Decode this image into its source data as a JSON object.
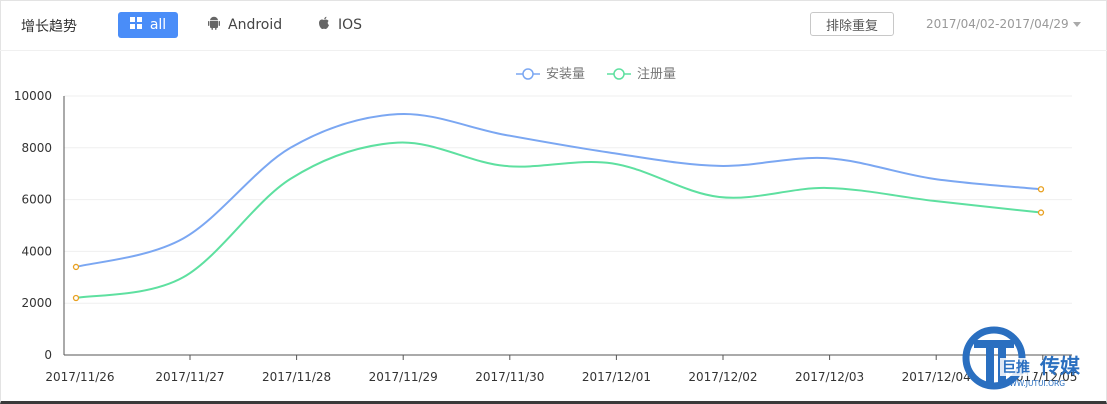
{
  "header": {
    "title": "增长趋势",
    "tabs": [
      {
        "label": "all",
        "icon": "grid-icon",
        "active": true
      },
      {
        "label": "Android",
        "icon": "android-icon",
        "active": false
      },
      {
        "label": "IOS",
        "icon": "apple-icon",
        "active": false
      }
    ],
    "dedup_button": "排除重复",
    "date_range": "2017/04/02-2017/04/29"
  },
  "colors": {
    "accent": "#4a8df8",
    "series_install": "#7ba7f2",
    "series_register": "#5ee0a0",
    "endpoint": "#e8a020"
  },
  "chart_data": {
    "type": "line",
    "categories": [
      "2017/11/26",
      "2017/11/27",
      "2017/11/28",
      "2017/11/29",
      "2017/11/30",
      "2017/12/01",
      "2017/12/02",
      "2017/12/03",
      "2017/12/04",
      "2017/12/05"
    ],
    "series": [
      {
        "name": "安装量",
        "values": [
          3400,
          4500,
          8000,
          9300,
          8500,
          7800,
          7300,
          7600,
          6800,
          6400
        ]
      },
      {
        "name": "注册量",
        "values": [
          2200,
          3000,
          6800,
          8200,
          7300,
          7400,
          6100,
          6450,
          5950,
          5500
        ]
      }
    ],
    "ylim": [
      0,
      10000
    ],
    "yticks": [
      "0",
      "2000",
      "4000",
      "6000",
      "8000",
      "10000"
    ],
    "legend_position": "top-center",
    "grid": true
  },
  "watermark": {
    "brand": "巨推",
    "brand2": "传媒",
    "url": "WWW.JUTUI.ORG"
  }
}
